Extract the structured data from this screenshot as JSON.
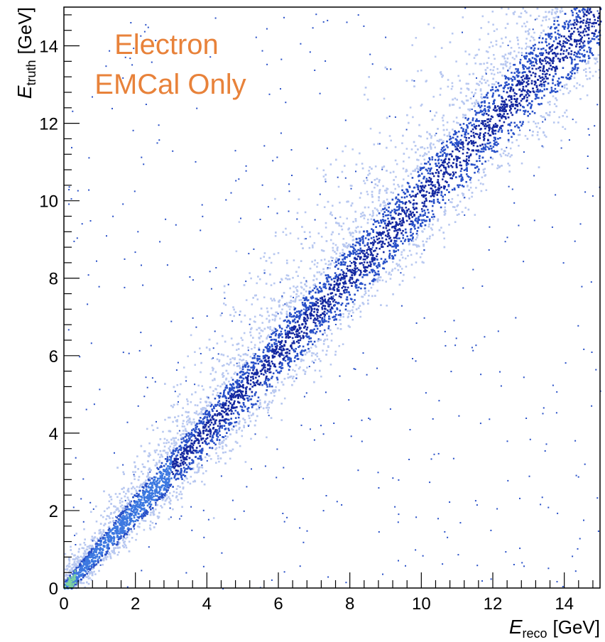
{
  "chart_data": {
    "type": "heatmap",
    "title": "",
    "annotation": {
      "lines": [
        "Electron",
        "EMCal Only"
      ],
      "color": "#e8823a"
    },
    "xlabel": {
      "var": "E",
      "sub": "reco",
      "unit": "[GeV]"
    },
    "ylabel": {
      "var": "E",
      "sub": "truth",
      "unit": "[GeV]"
    },
    "xlim": [
      0,
      15
    ],
    "ylim": [
      0,
      15
    ],
    "xticks": [
      0,
      2,
      4,
      6,
      8,
      10,
      12,
      14
    ],
    "yticks": [
      0,
      2,
      4,
      6,
      8,
      10,
      12,
      14
    ],
    "xtick_labels": [
      "0",
      "2",
      "4",
      "6",
      "8",
      "10",
      "12",
      "14"
    ],
    "ytick_labels": [
      "0",
      "2",
      "4",
      "6",
      "8",
      "10",
      "12",
      "14"
    ],
    "grid": false,
    "colors": {
      "low": "#b8c8f0",
      "mid": "#2850c8",
      "high": "#1428a0",
      "core": "#3c78e0",
      "peak": "#7fd3a0"
    },
    "distribution": {
      "description_of_density": "dense band along E_truth ≈ E_reco",
      "band_centerline": [
        [
          0,
          0
        ],
        [
          2,
          2.05
        ],
        [
          4,
          4.1
        ],
        [
          6,
          6.1
        ],
        [
          8,
          8.1
        ],
        [
          10,
          10.1
        ],
        [
          12,
          12.1
        ],
        [
          14,
          14.0
        ],
        [
          15,
          14.9
        ]
      ],
      "band_width_sigma": [
        [
          0,
          0.15
        ],
        [
          2,
          0.35
        ],
        [
          4,
          0.5
        ],
        [
          6,
          0.6
        ],
        [
          8,
          0.65
        ],
        [
          10,
          0.7
        ],
        [
          12,
          0.75
        ],
        [
          14,
          0.8
        ]
      ],
      "upper_tail": "broader scatter toward higher E_truth than E_reco",
      "peak_region": [
        0,
        0.3
      ]
    }
  }
}
